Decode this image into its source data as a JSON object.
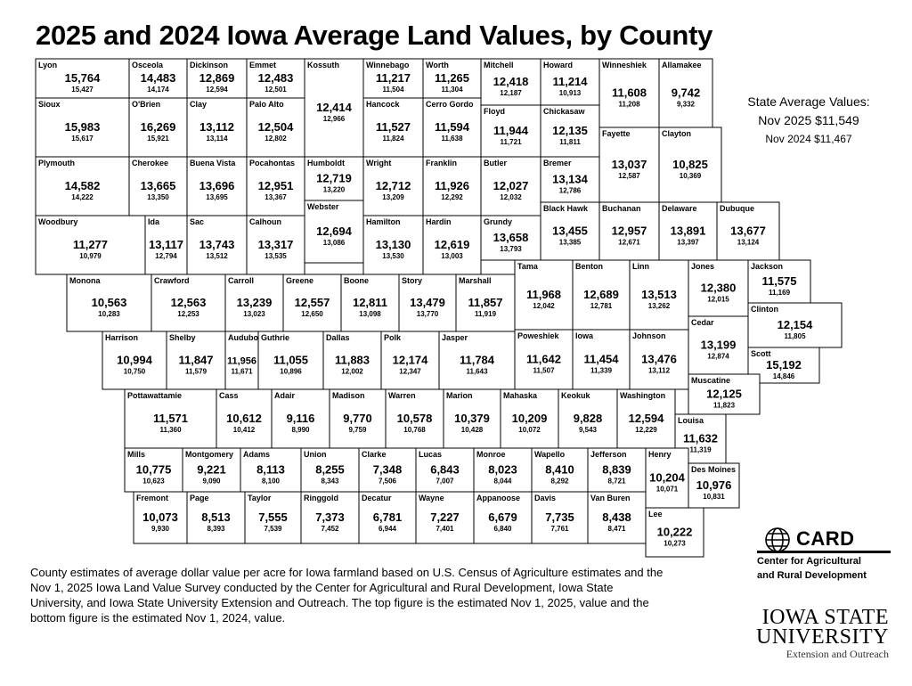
{
  "header": {
    "title": "2025 and 2024 Iowa Average Land Values, by County"
  },
  "state_average": {
    "heading": "State Average Values:",
    "nov_2025": "Nov 2025 $11,549",
    "nov_2024": "Nov 2024 $11,467"
  },
  "counties": [
    {
      "name": "Lyon",
      "value_2025": "15,764",
      "value_2024": "15,427"
    },
    {
      "name": "Osceola",
      "value_2025": "14,483",
      "value_2024": "14,174"
    },
    {
      "name": "Dickinson",
      "value_2025": "12,869",
      "value_2024": "12,594"
    },
    {
      "name": "Emmet",
      "value_2025": "12,483",
      "value_2024": "12,501"
    },
    {
      "name": "Kossuth",
      "value_2025": "12,414",
      "value_2024": "12,966"
    },
    {
      "name": "Winnebago",
      "value_2025": "11,217",
      "value_2024": "11,504"
    },
    {
      "name": "Worth",
      "value_2025": "11,265",
      "value_2024": "11,304"
    },
    {
      "name": "Mitchell",
      "value_2025": "12,418",
      "value_2024": "12,187"
    },
    {
      "name": "Howard",
      "value_2025": "11,214",
      "value_2024": "10,913"
    },
    {
      "name": "Winneshiek",
      "value_2025": "11,608",
      "value_2024": "11,208"
    },
    {
      "name": "Allamakee",
      "value_2025": "9,742",
      "value_2024": "9,332"
    },
    {
      "name": "Sioux",
      "value_2025": "15,983",
      "value_2024": "15,617"
    },
    {
      "name": "O'Brien",
      "value_2025": "16,269",
      "value_2024": "15,921"
    },
    {
      "name": "Clay",
      "value_2025": "13,112",
      "value_2024": "13,114"
    },
    {
      "name": "Palo Alto",
      "value_2025": "12,504",
      "value_2024": "12,802"
    },
    {
      "name": "Hancock",
      "value_2025": "11,527",
      "value_2024": "11,824"
    },
    {
      "name": "Cerro Gordo",
      "value_2025": "11,594",
      "value_2024": "11,638"
    },
    {
      "name": "Floyd",
      "value_2025": "11,944",
      "value_2024": "11,721"
    },
    {
      "name": "Chickasaw",
      "value_2025": "12,135",
      "value_2024": "11,811"
    },
    {
      "name": "Fayette",
      "value_2025": "13,037",
      "value_2024": "12,587"
    },
    {
      "name": "Clayton",
      "value_2025": "10,825",
      "value_2024": "10,369"
    },
    {
      "name": "Plymouth",
      "value_2025": "14,582",
      "value_2024": "14,222"
    },
    {
      "name": "Cherokee",
      "value_2025": "13,665",
      "value_2024": "13,350"
    },
    {
      "name": "Buena Vista",
      "value_2025": "13,696",
      "value_2024": "13,695"
    },
    {
      "name": "Pocahontas",
      "value_2025": "12,951",
      "value_2024": "13,367"
    },
    {
      "name": "Humboldt",
      "value_2025": "12,719",
      "value_2024": "13,220"
    },
    {
      "name": "Wright",
      "value_2025": "12,712",
      "value_2024": "13,209"
    },
    {
      "name": "Franklin",
      "value_2025": "11,926",
      "value_2024": "12,292"
    },
    {
      "name": "Butler",
      "value_2025": "12,027",
      "value_2024": "12,032"
    },
    {
      "name": "Bremer",
      "value_2025": "13,134",
      "value_2024": "12,786"
    },
    {
      "name": "Webster",
      "value_2025": "12,694",
      "value_2024": "13,086"
    },
    {
      "name": "Black Hawk",
      "value_2025": "13,455",
      "value_2024": "13,385"
    },
    {
      "name": "Buchanan",
      "value_2025": "12,957",
      "value_2024": "12,671"
    },
    {
      "name": "Delaware",
      "value_2025": "13,891",
      "value_2024": "13,397"
    },
    {
      "name": "Dubuque",
      "value_2025": "13,677",
      "value_2024": "13,124"
    },
    {
      "name": "Woodbury",
      "value_2025": "11,277",
      "value_2024": "10,979"
    },
    {
      "name": "Ida",
      "value_2025": "13,117",
      "value_2024": "12,794"
    },
    {
      "name": "Sac",
      "value_2025": "13,743",
      "value_2024": "13,512"
    },
    {
      "name": "Calhoun",
      "value_2025": "13,317",
      "value_2024": "13,535"
    },
    {
      "name": "Hamilton",
      "value_2025": "13,130",
      "value_2024": "13,530"
    },
    {
      "name": "Hardin",
      "value_2025": "12,619",
      "value_2024": "13,003"
    },
    {
      "name": "Grundy",
      "value_2025": "13,658",
      "value_2024": "13,793"
    },
    {
      "name": "Tama",
      "value_2025": "11,968",
      "value_2024": "12,042"
    },
    {
      "name": "Benton",
      "value_2025": "12,689",
      "value_2024": "12,781"
    },
    {
      "name": "Linn",
      "value_2025": "13,513",
      "value_2024": "13,262"
    },
    {
      "name": "Jones",
      "value_2025": "12,380",
      "value_2024": "12,015"
    },
    {
      "name": "Jackson",
      "value_2025": "11,575",
      "value_2024": "11,169"
    },
    {
      "name": "Clinton",
      "value_2025": "12,154",
      "value_2024": "11,805"
    },
    {
      "name": "Cedar",
      "value_2025": "13,199",
      "value_2024": "12,874"
    },
    {
      "name": "Scott",
      "value_2025": "15,192",
      "value_2024": "14,846"
    },
    {
      "name": "Monona",
      "value_2025": "10,563",
      "value_2024": "10,283"
    },
    {
      "name": "Crawford",
      "value_2025": "12,563",
      "value_2024": "12,253"
    },
    {
      "name": "Carroll",
      "value_2025": "13,239",
      "value_2024": "13,023"
    },
    {
      "name": "Greene",
      "value_2025": "12,557",
      "value_2024": "12,650"
    },
    {
      "name": "Boone",
      "value_2025": "12,811",
      "value_2024": "13,098"
    },
    {
      "name": "Story",
      "value_2025": "13,479",
      "value_2024": "13,770"
    },
    {
      "name": "Marshall",
      "value_2025": "11,857",
      "value_2024": "11,919"
    },
    {
      "name": "Harrison",
      "value_2025": "10,994",
      "value_2024": "10,750"
    },
    {
      "name": "Shelby",
      "value_2025": "11,847",
      "value_2024": "11,579"
    },
    {
      "name": "Audubon",
      "value_2025": "11,956",
      "value_2024": "11,671"
    },
    {
      "name": "Guthrie",
      "value_2025": "11,055",
      "value_2024": "10,896"
    },
    {
      "name": "Dallas",
      "value_2025": "11,883",
      "value_2024": "12,002"
    },
    {
      "name": "Polk",
      "value_2025": "12,174",
      "value_2024": "12,347"
    },
    {
      "name": "Jasper",
      "value_2025": "11,784",
      "value_2024": "11,643"
    },
    {
      "name": "Poweshiek",
      "value_2025": "11,642",
      "value_2024": "11,507"
    },
    {
      "name": "Iowa",
      "value_2025": "11,454",
      "value_2024": "11,339"
    },
    {
      "name": "Johnson",
      "value_2025": "13,476",
      "value_2024": "13,112"
    },
    {
      "name": "Muscatine",
      "value_2025": "12,125",
      "value_2024": "11,823"
    },
    {
      "name": "Pottawattamie",
      "value_2025": "11,571",
      "value_2024": "11,360"
    },
    {
      "name": "Cass",
      "value_2025": "10,612",
      "value_2024": "10,412"
    },
    {
      "name": "Adair",
      "value_2025": "9,116",
      "value_2024": "8,990"
    },
    {
      "name": "Madison",
      "value_2025": "9,770",
      "value_2024": "9,759"
    },
    {
      "name": "Warren",
      "value_2025": "10,578",
      "value_2024": "10,768"
    },
    {
      "name": "Marion",
      "value_2025": "10,379",
      "value_2024": "10,428"
    },
    {
      "name": "Mahaska",
      "value_2025": "10,209",
      "value_2024": "10,072"
    },
    {
      "name": "Keokuk",
      "value_2025": "9,828",
      "value_2024": "9,543"
    },
    {
      "name": "Washington",
      "value_2025": "12,594",
      "value_2024": "12,229"
    },
    {
      "name": "Louisa",
      "value_2025": "11,632",
      "value_2024": "11,319"
    },
    {
      "name": "Mills",
      "value_2025": "10,775",
      "value_2024": "10,623"
    },
    {
      "name": "Montgomery",
      "value_2025": "9,221",
      "value_2024": "9,090"
    },
    {
      "name": "Adams",
      "value_2025": "8,113",
      "value_2024": "8,100"
    },
    {
      "name": "Union",
      "value_2025": "8,255",
      "value_2024": "8,343"
    },
    {
      "name": "Clarke",
      "value_2025": "7,348",
      "value_2024": "7,506"
    },
    {
      "name": "Lucas",
      "value_2025": "6,843",
      "value_2024": "7,007"
    },
    {
      "name": "Monroe",
      "value_2025": "8,023",
      "value_2024": "8,044"
    },
    {
      "name": "Wapello",
      "value_2025": "8,410",
      "value_2024": "8,292"
    },
    {
      "name": "Jefferson",
      "value_2025": "8,839",
      "value_2024": "8,721"
    },
    {
      "name": "Henry",
      "value_2025": "10,204",
      "value_2024": "10,071"
    },
    {
      "name": "Des Moines",
      "value_2025": "10,976",
      "value_2024": "10,831"
    },
    {
      "name": "Fremont",
      "value_2025": "10,073",
      "value_2024": "9,930"
    },
    {
      "name": "Page",
      "value_2025": "8,513",
      "value_2024": "8,393"
    },
    {
      "name": "Taylor",
      "value_2025": "7,555",
      "value_2024": "7,539"
    },
    {
      "name": "Ringgold",
      "value_2025": "7,373",
      "value_2024": "7,452"
    },
    {
      "name": "Decatur",
      "value_2025": "6,781",
      "value_2024": "6,944"
    },
    {
      "name": "Wayne",
      "value_2025": "7,227",
      "value_2024": "7,401"
    },
    {
      "name": "Appanoose",
      "value_2025": "6,679",
      "value_2024": "6,840"
    },
    {
      "name": "Davis",
      "value_2025": "7,735",
      "value_2024": "7,761"
    },
    {
      "name": "Van Buren",
      "value_2025": "8,438",
      "value_2024": "8,471"
    },
    {
      "name": "Lee",
      "value_2025": "10,222",
      "value_2024": "10,273"
    }
  ],
  "footnote": "County estimates of average dollar value per acre for Iowa farmland based on U.S. Census of Agriculture estimates and the Nov 1, 2025 Iowa Land Value Survey conducted by the Center for Agricultural and Rural Development, Iowa State University, and Iowa State University Extension and Outreach. The top figure is the estimated Nov 1, 2025, value and the bottom figure is the estimated Nov 1, 2024, value.",
  "logos": {
    "card": {
      "name": "CARD",
      "line1": "Center for Agricultural",
      "line2": "and Rural Development"
    },
    "isu": {
      "line1": "IOWA STATE",
      "line2": "UNIVERSITY",
      "line3": "Extension and Outreach"
    }
  }
}
